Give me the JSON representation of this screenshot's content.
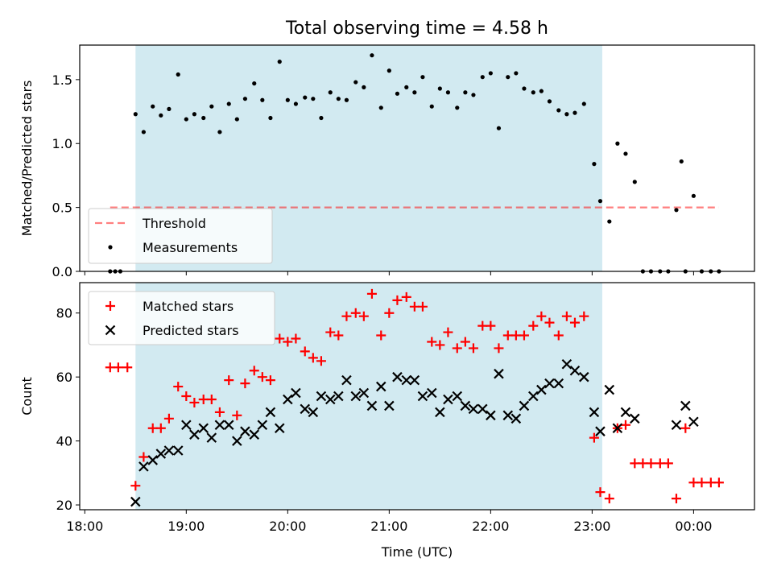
{
  "figure_title": "Total observing time = 4.58 h",
  "colors": {
    "shade": "#add8e6",
    "threshold": "#ff0000",
    "measurements": "#000000",
    "matched": "#ff0000",
    "predicted": "#000000"
  },
  "chart_data": [
    {
      "type": "scatter",
      "panel": "top",
      "ylabel": "Matched/Predicted stars",
      "xlabel": "",
      "xlim": [
        17.95,
        24.6
      ],
      "ylim": [
        0.0,
        1.77
      ],
      "yticks": [
        0.0,
        0.5,
        1.0,
        1.5
      ],
      "ytick_labels": [
        "0.0",
        "0.5",
        "1.0",
        "1.5"
      ],
      "shaded_span": [
        18.5,
        23.1
      ],
      "legend": {
        "position": "lower-left",
        "entries": [
          "Threshold",
          "Measurements"
        ]
      },
      "threshold": {
        "name": "Threshold",
        "y": 0.5,
        "x": [
          18.25,
          24.25
        ],
        "style": "dashed"
      },
      "series": [
        {
          "name": "Measurements",
          "marker": "dot",
          "x": [
            18.25,
            18.3,
            18.35,
            18.5,
            18.58,
            18.67,
            18.75,
            18.83,
            18.92,
            19.0,
            19.08,
            19.17,
            19.25,
            19.33,
            19.42,
            19.5,
            19.58,
            19.67,
            19.75,
            19.83,
            19.92,
            20.0,
            20.08,
            20.17,
            20.25,
            20.33,
            20.42,
            20.5,
            20.58,
            20.67,
            20.75,
            20.83,
            20.92,
            21.0,
            21.08,
            21.17,
            21.25,
            21.33,
            21.42,
            21.5,
            21.58,
            21.67,
            21.75,
            21.83,
            21.92,
            22.0,
            22.08,
            22.17,
            22.25,
            22.33,
            22.42,
            22.5,
            22.58,
            22.67,
            22.75,
            22.83,
            22.92,
            23.02,
            23.08,
            23.17,
            23.25,
            23.33,
            23.42,
            23.5,
            23.58,
            23.67,
            23.75,
            23.83,
            23.88,
            23.92,
            24.0,
            24.08,
            24.17,
            24.25
          ],
          "y": [
            0.0,
            0.0,
            0.0,
            1.23,
            1.09,
            1.29,
            1.22,
            1.27,
            1.54,
            1.19,
            1.23,
            1.2,
            1.29,
            1.09,
            1.31,
            1.19,
            1.35,
            1.47,
            1.34,
            1.2,
            1.64,
            1.34,
            1.31,
            1.36,
            1.35,
            1.2,
            1.4,
            1.35,
            1.34,
            1.48,
            1.44,
            1.69,
            1.28,
            1.57,
            1.39,
            1.44,
            1.4,
            1.52,
            1.29,
            1.43,
            1.4,
            1.28,
            1.4,
            1.38,
            1.52,
            1.55,
            1.12,
            1.52,
            1.55,
            1.43,
            1.4,
            1.41,
            1.33,
            1.26,
            1.23,
            1.24,
            1.31,
            0.84,
            0.55,
            0.39,
            1.0,
            0.92,
            0.7,
            0.0,
            0.0,
            0.0,
            0.0,
            0.48,
            0.86,
            0.0,
            0.59,
            0.0,
            0.0,
            0.0
          ]
        }
      ]
    },
    {
      "type": "scatter",
      "panel": "bottom",
      "xlabel": "Time (UTC)",
      "ylabel": "Count",
      "xlim": [
        17.95,
        24.6
      ],
      "ylim": [
        18.5,
        89.5
      ],
      "yticks": [
        20,
        40,
        60,
        80
      ],
      "ytick_labels": [
        "20",
        "40",
        "60",
        "80"
      ],
      "xticks": [
        18,
        19,
        20,
        21,
        22,
        23,
        24
      ],
      "xtick_labels": [
        "18:00",
        "19:00",
        "20:00",
        "21:00",
        "22:00",
        "23:00",
        "00:00"
      ],
      "shaded_span": [
        18.5,
        23.1
      ],
      "legend": {
        "position": "upper-left",
        "entries": [
          "Matched stars",
          "Predicted stars"
        ]
      },
      "series": [
        {
          "name": "Matched stars",
          "marker": "plus",
          "x": [
            18.25,
            18.33,
            18.42,
            18.5,
            18.58,
            18.67,
            18.75,
            18.83,
            18.92,
            19.0,
            19.08,
            19.17,
            19.25,
            19.33,
            19.42,
            19.5,
            19.58,
            19.67,
            19.75,
            19.83,
            19.92,
            20.0,
            20.08,
            20.17,
            20.25,
            20.33,
            20.42,
            20.5,
            20.58,
            20.67,
            20.75,
            20.83,
            20.92,
            21.0,
            21.08,
            21.17,
            21.25,
            21.33,
            21.42,
            21.5,
            21.58,
            21.67,
            21.75,
            21.83,
            21.92,
            22.0,
            22.08,
            22.17,
            22.25,
            22.33,
            22.42,
            22.5,
            22.58,
            22.67,
            22.75,
            22.83,
            22.92,
            23.02,
            23.08,
            23.17,
            23.25,
            23.33,
            23.42,
            23.5,
            23.58,
            23.67,
            23.75,
            23.83,
            23.92,
            24.0,
            24.08,
            24.17,
            24.25
          ],
          "y": [
            63,
            63,
            63,
            26,
            35,
            44,
            44,
            47,
            57,
            54,
            52,
            53,
            53,
            49,
            59,
            48,
            58,
            62,
            60,
            59,
            72,
            71,
            72,
            68,
            66,
            65,
            74,
            73,
            79,
            80,
            79,
            86,
            73,
            80,
            84,
            85,
            82,
            82,
            71,
            70,
            74,
            69,
            71,
            69,
            76,
            76,
            69,
            73,
            73,
            73,
            76,
            79,
            77,
            73,
            79,
            77,
            79,
            41,
            24,
            22,
            44,
            45,
            33,
            33,
            33,
            33,
            33,
            22,
            44,
            27,
            27,
            27,
            27
          ]
        },
        {
          "name": "Predicted stars",
          "marker": "x",
          "x": [
            18.5,
            18.58,
            18.67,
            18.75,
            18.83,
            18.92,
            19.0,
            19.08,
            19.17,
            19.25,
            19.33,
            19.42,
            19.5,
            19.58,
            19.67,
            19.75,
            19.83,
            19.92,
            20.0,
            20.08,
            20.17,
            20.25,
            20.33,
            20.42,
            20.5,
            20.58,
            20.67,
            20.75,
            20.83,
            20.92,
            21.0,
            21.08,
            21.17,
            21.25,
            21.33,
            21.42,
            21.5,
            21.58,
            21.67,
            21.75,
            21.83,
            21.92,
            22.0,
            22.08,
            22.17,
            22.25,
            22.33,
            22.42,
            22.5,
            22.58,
            22.67,
            22.75,
            22.83,
            22.92,
            23.02,
            23.08,
            23.17,
            23.25,
            23.33,
            23.42,
            23.83,
            23.92,
            24.0
          ],
          "y": [
            21,
            32,
            34,
            36,
            37,
            37,
            45,
            42,
            44,
            41,
            45,
            45,
            40,
            43,
            42,
            45,
            49,
            44,
            53,
            55,
            50,
            49,
            54,
            53,
            54,
            59,
            54,
            55,
            51,
            57,
            51,
            60,
            59,
            59,
            54,
            55,
            49,
            53,
            54,
            51,
            50,
            50,
            48,
            61,
            48,
            47,
            51,
            54,
            56,
            58,
            58,
            64,
            62,
            60,
            49,
            43,
            56,
            44,
            49,
            47,
            45,
            51,
            46
          ]
        }
      ]
    }
  ]
}
